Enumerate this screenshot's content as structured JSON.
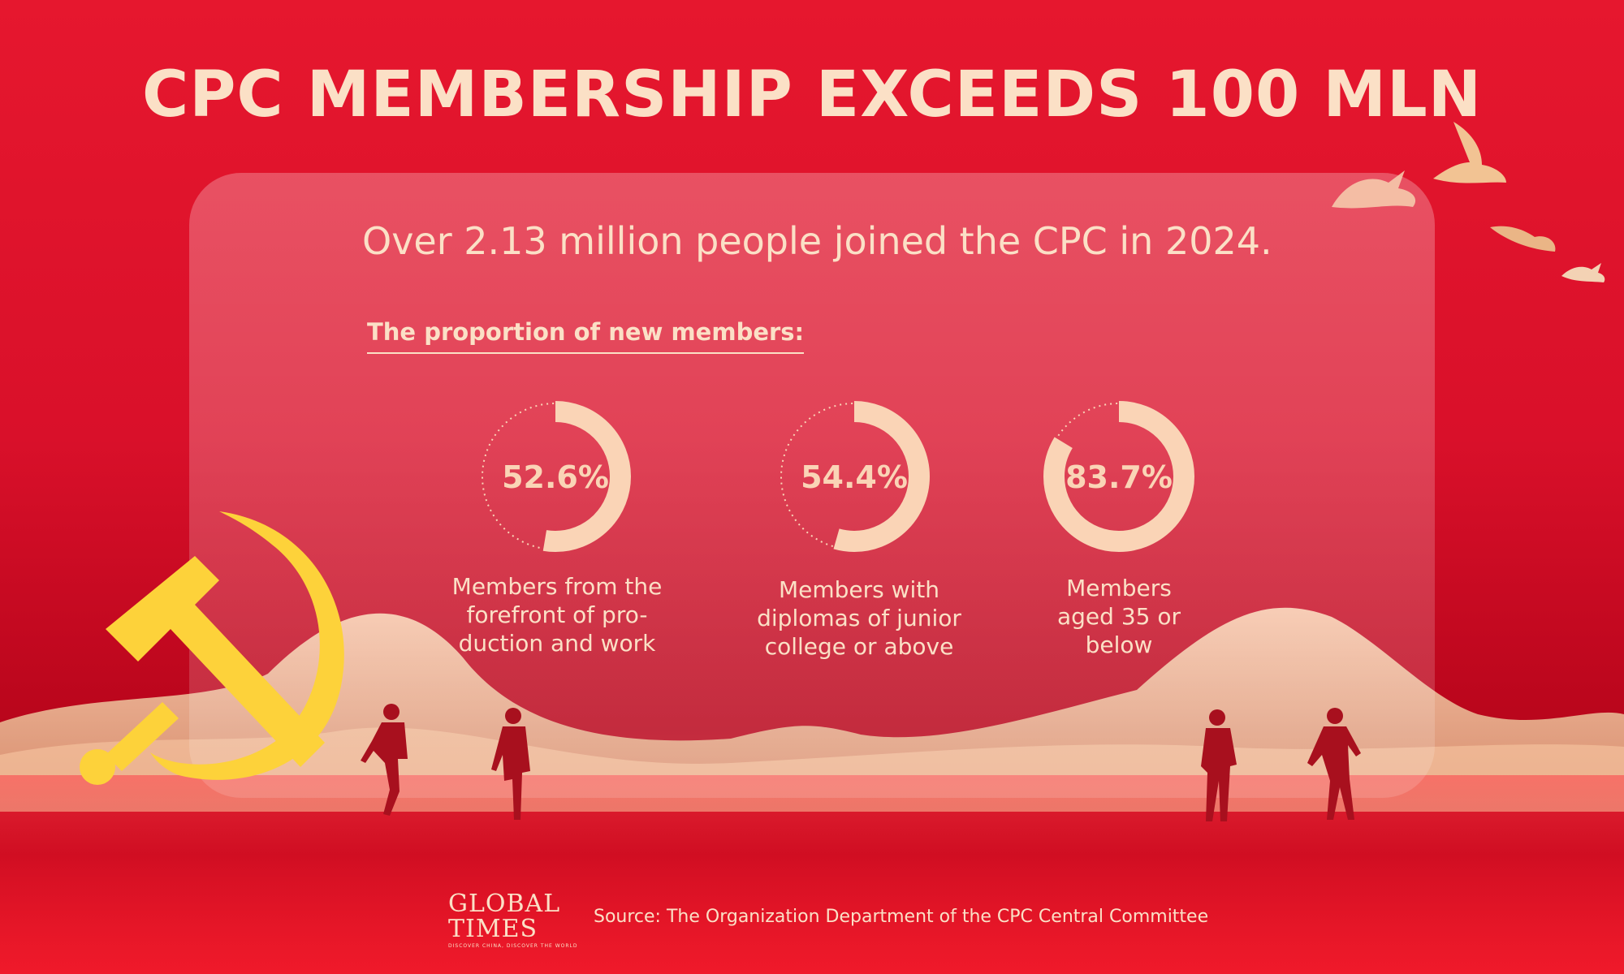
{
  "header": {
    "title": "CPC MEMBERSHIP EXCEEDS 100 MLN",
    "subtitle": "Over 2.13 million people joined the CPC in 2024.",
    "section_label": "The proportion of new members:"
  },
  "chart_data": {
    "type": "pie",
    "title": "The proportion of new members:",
    "series": [
      {
        "name": "Members from the forefront of production and work",
        "value": 52.6,
        "label": "52.6%",
        "lines": [
          "Members from the",
          "forefront of pro-",
          "duction and work"
        ]
      },
      {
        "name": "Members with diplomas of junior college or above",
        "value": 54.4,
        "label": "54.4%",
        "lines": [
          "Members with",
          "diplomas of junior",
          "college or above"
        ]
      },
      {
        "name": "Members aged 35 or below",
        "value": 83.7,
        "label": "83.7%",
        "lines": [
          "Members",
          "aged 35 or",
          "below"
        ]
      }
    ]
  },
  "footer": {
    "logo_line1": "GLOBAL",
    "logo_line2": "TIMES",
    "logo_tagline": "DISCOVER CHINA, DISCOVER THE WORLD",
    "source": "Source: The Organization Department of the CPC Central Committee"
  },
  "colors": {
    "background": "#e2142c",
    "text": "#fbe0c6",
    "ring": "#fad4b6",
    "emblem": "#fdd23a"
  }
}
